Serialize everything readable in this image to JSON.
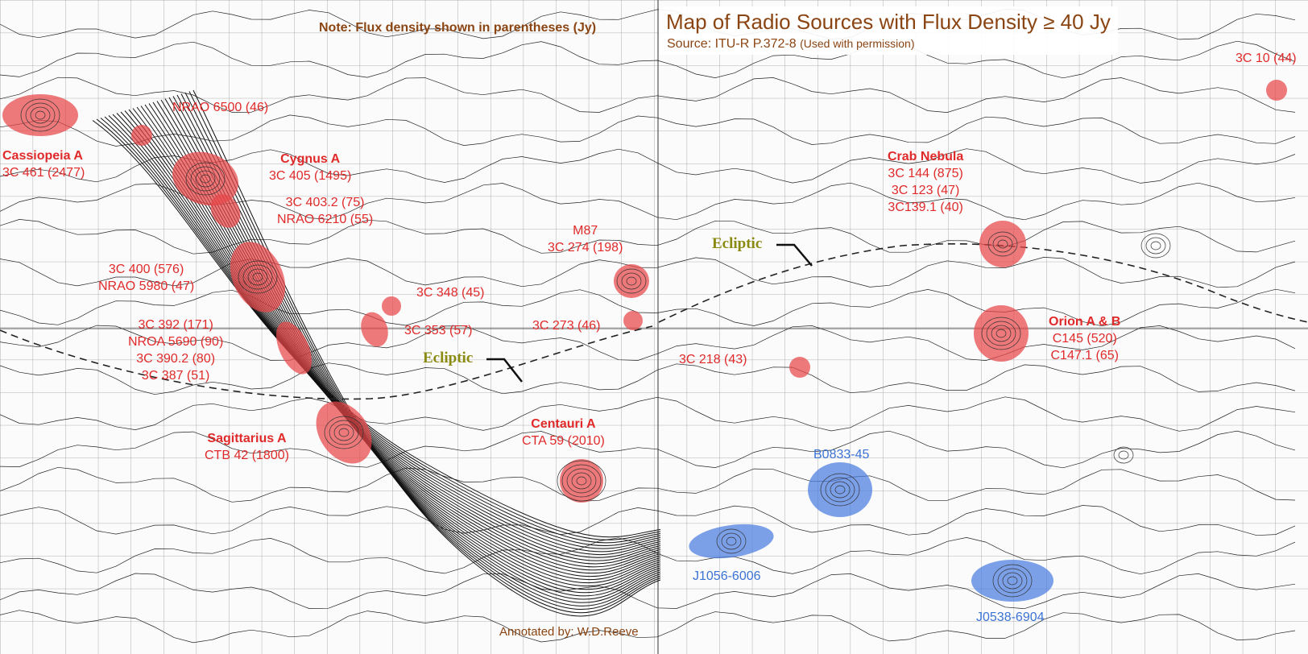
{
  "map": {
    "title": "Map of Radio Sources with Flux Density ≥ 40 Jy",
    "source_text": "Source: ITU-R P.372-8",
    "source_note": "(Used with permission)",
    "note": "Note: Flux density shown in parentheses (Jy)",
    "credit": "Annotated by: W.D.Reeve",
    "ecliptic_label": "Ecliptic",
    "colors": {
      "source_marker": "#e8474a",
      "pulsar_marker": "#4a7de0",
      "label_red": "#e02a2a",
      "label_blue": "#3b73d4",
      "ecliptic_label": "#8b8a10",
      "title": "#8b4513"
    }
  },
  "labels": {
    "cassiopeia": {
      "name": "Cassiopeia A",
      "line1": "3C 461 (2477)"
    },
    "nrao6500": {
      "line1": "NRAO 6500 (46)"
    },
    "cygnus": {
      "name": "Cygnus A",
      "line1": "3C 405 (1495)"
    },
    "c4032": {
      "line1": "3C 403.2 (75)",
      "line2": "NRAO 6210 (55)"
    },
    "c400": {
      "line1": "3C 400 (576)",
      "line2": "NRAO 5980 (47)"
    },
    "c392": {
      "line1": "3C 392 (171)",
      "line2": "NROA 5690 (90)",
      "line3": "3C 390.2 (80)",
      "line4": "3C 387  (51)"
    },
    "sagittarius": {
      "name": "Sagittarius A",
      "line1": "CTB 42 (1800)"
    },
    "c348": {
      "line1": "3C 348 (45)"
    },
    "c353": {
      "line1": "3C 353 (57)"
    },
    "m87": {
      "line1": "M87",
      "line2": "3C 274 (198)"
    },
    "c273": {
      "line1": "3C 273 (46)"
    },
    "centauri": {
      "name": "Centauri A",
      "line1": "CTA 59 (2010)"
    },
    "crab": {
      "name": "Crab Nebula",
      "line1": "3C 144 (875)",
      "line2": "3C 123 (47)",
      "line3": "3C139.1 (40)"
    },
    "orion": {
      "name": "Orion A & B",
      "line1": "C145 (520)",
      "line2": "C147.1 (65)"
    },
    "c218": {
      "line1": "3C 218 (43)"
    },
    "c10": {
      "line1": "3C 10 (44)"
    },
    "b0833": {
      "line1": "B0833-45"
    },
    "j1056": {
      "line1": "J1056-6006"
    },
    "j0538": {
      "line1": "J0538-6904"
    }
  }
}
